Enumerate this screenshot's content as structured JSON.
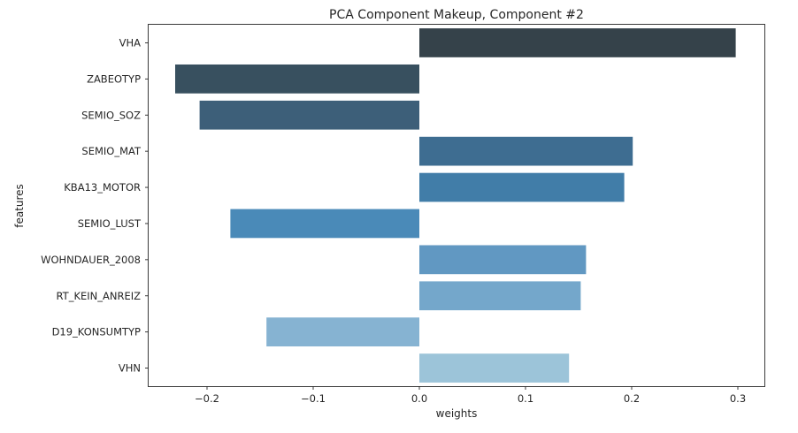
{
  "chart_data": {
    "type": "bar",
    "orientation": "horizontal",
    "title": "PCA Component Makeup, Component #2",
    "xlabel": "weights",
    "ylabel": "features",
    "categories": [
      "VHA",
      "ZABEOTYP",
      "SEMIO_SOZ",
      "SEMIO_MAT",
      "KBA13_MOTOR",
      "SEMIO_LUST",
      "WOHNDAUER_2008",
      "RT_KEIN_ANREIZ",
      "D19_KONSUMTYP",
      "VHN"
    ],
    "values": [
      0.298,
      -0.23,
      -0.207,
      0.201,
      0.193,
      -0.178,
      0.157,
      0.152,
      -0.144,
      0.141
    ],
    "colors": [
      "#35424a",
      "#38505f",
      "#3d5f79",
      "#3e6d91",
      "#417da8",
      "#4a8ab8",
      "#6198c2",
      "#74a7cb",
      "#86b3d2",
      "#9cc4d9"
    ],
    "xlim": [
      -0.255,
      0.325
    ],
    "xticks": [
      -0.2,
      -0.1,
      0.0,
      0.1,
      0.2,
      0.3
    ],
    "xtick_labels": [
      "−0.2",
      "−0.1",
      "0.0",
      "0.1",
      "0.2",
      "0.3"
    ],
    "grid": false,
    "legend": "none"
  }
}
